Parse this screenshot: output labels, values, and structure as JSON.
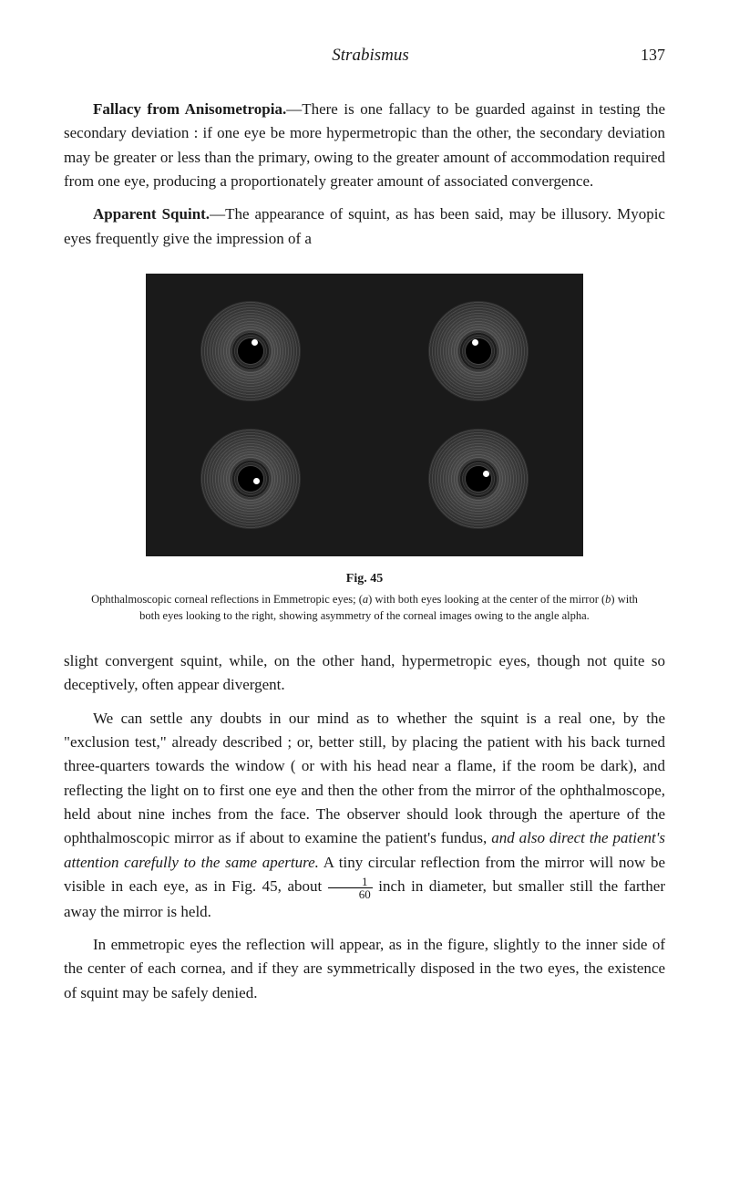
{
  "running_head": "Strabismus",
  "page_number": "137",
  "paragraphs": {
    "p1_heading": "Fallacy from Anisometropia.",
    "p1_text": "—There is one fallacy to be guarded against in testing the secondary deviation : if one eye be more hypermetropic than the other, the secondary deviation may be greater or less than the primary, owing to the greater amount of accommodation required from one eye, producing a proportionately greater amount of associated convergence.",
    "p2_heading": "Apparent Squint.",
    "p2_text": "—The appearance of squint, as has been said, may be illusory. Myopic eyes frequently give the impression of a",
    "p3_text": "slight convergent squint, while, on the other hand, hypermetropic eyes, though not quite so deceptively, often appear divergent.",
    "p4_pre": "We can settle any doubts in our mind as to whether the squint is a real one, by the \"exclusion test,\" already described ; or, better still, by placing the patient with his back turned three-quarters towards the window ( or with his head near a flame, if the room be dark), and reflecting the light on to first one eye and then the other from the mirror of the ophthalmoscope, held about nine inches from the face. The observer should look through the aperture of the ophthalmoscopic mirror as if about to examine the patient's fundus, ",
    "p4_ital": "and also direct the patient's attention carefully to the same aperture.",
    "p4_post1": " A tiny circular reflection from the mirror will now be visible in each eye, as in Fig. 45, about ",
    "p4_frac_num": "1",
    "p4_frac_den": "60",
    "p4_post2": " inch in diameter, but smaller still the farther away the mirror is held.",
    "p5_text": "In emmetropic eyes the reflection will appear, as in the figure, slightly to the inner side of the center of each cornea, and if they are symmetrically disposed in the two eyes, the existence of squint may be safely denied."
  },
  "figure": {
    "label": "Fig. 45",
    "caption_pre": "Ophthalmoscopic corneal reflections in Emmetropic eyes; (",
    "caption_a": "a",
    "caption_mid1": ") with both eyes looking at the center of the mirror (",
    "caption_b": "b",
    "caption_mid2": ") with both eyes looking to the right, showing asymmetry of the corneal images owing to the angle alpha."
  }
}
